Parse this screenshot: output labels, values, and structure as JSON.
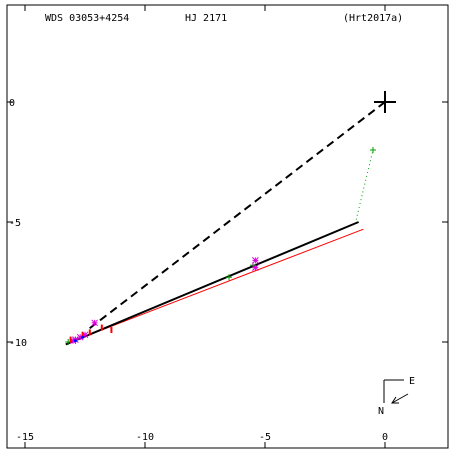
{
  "header": {
    "wds": "WDS 03053+4254",
    "discoverer": "HJ 2171",
    "reference": "(Hrt2017a)"
  },
  "compass": {
    "north": "N",
    "east": "E"
  },
  "chart_data": {
    "type": "scatter",
    "title": "",
    "xlabel": "",
    "ylabel": "",
    "xlim": [
      -15,
      2.5
    ],
    "ylim": [
      -13.9,
      3.8
    ],
    "x_ticks": [
      -15,
      -10,
      -5,
      0
    ],
    "x_tick_labels": [
      "-15",
      "-10",
      "-5",
      "0"
    ],
    "y_ticks": [
      0,
      -5,
      -10
    ],
    "y_tick_labels": [
      "0",
      "-5",
      "-10"
    ],
    "grid": false,
    "primary_star": [
      0,
      0
    ],
    "line_of_nodes": {
      "x": [
        0,
        -12.4
      ],
      "y": [
        0,
        -9.5
      ],
      "color": "#000000",
      "style": "dashed"
    },
    "orbit_fit": {
      "x": [
        -13.3,
        -1.1
      ],
      "y": [
        -10.1,
        -5.0
      ],
      "color": "#000000",
      "style": "solid"
    },
    "linear_fit": {
      "x": [
        -13.1,
        -0.9
      ],
      "y": [
        -10.0,
        -5.3
      ],
      "color": "#ff0000",
      "style": "solid"
    },
    "residual_link": {
      "x": [
        -1.2,
        -0.5
      ],
      "y": [
        -4.9,
        -2.0
      ],
      "color": "#00a000",
      "style": "dotted"
    },
    "series": [
      {
        "marker": "plus",
        "color": "#00a000",
        "points": [
          [
            -0.5,
            -2.0
          ],
          [
            -5.5,
            -6.8
          ],
          [
            -6.5,
            -7.3
          ],
          [
            -13.2,
            -10.0
          ],
          [
            -12.9,
            -9.9
          ]
        ]
      },
      {
        "marker": "asterisk",
        "color": "#e000e0",
        "points": [
          [
            -5.4,
            -6.6
          ],
          [
            -5.4,
            -6.9
          ],
          [
            -12.1,
            -9.2
          ],
          [
            -12.5,
            -9.7
          ],
          [
            -12.9,
            -9.9
          ],
          [
            -13.0,
            -9.95
          ],
          [
            -12.7,
            -9.8
          ]
        ]
      },
      {
        "marker": "tick",
        "color": "#ff0000",
        "points": [
          [
            -11.4,
            -9.5
          ],
          [
            -11.8,
            -9.4
          ],
          [
            -12.3,
            -9.6
          ],
          [
            -12.6,
            -9.7
          ],
          [
            -13.1,
            -9.9
          ]
        ]
      },
      {
        "marker": "dot",
        "color": "#0000ff",
        "points": [
          [
            -12.9,
            -9.95
          ],
          [
            -12.6,
            -9.8
          ]
        ]
      }
    ]
  }
}
